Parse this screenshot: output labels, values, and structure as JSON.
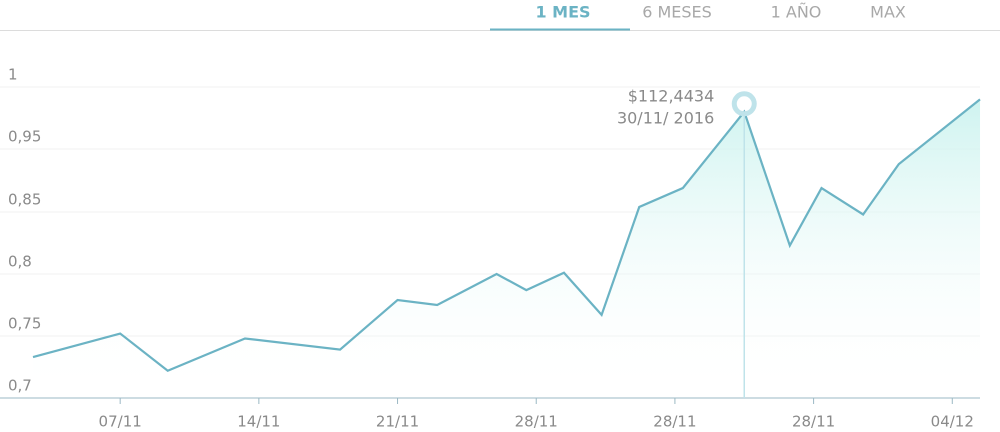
{
  "tabs": [
    "1 MES",
    "6 MESES",
    "1 AÑO",
    "MAX"
  ],
  "chart_data": {
    "type": "line",
    "x": [
      -4.4,
      0,
      2.4,
      6.3,
      11.1,
      14.0,
      16.0,
      19.0,
      20.5,
      22.4,
      24.3,
      26.2,
      28.4,
      31.5,
      33.8,
      35.4,
      37.5,
      39.3,
      43.4
    ],
    "series": [
      {
        "color": "#6bb3c4",
        "values": [
          0.733,
          0.752,
          0.722,
          0.748,
          0.739,
          0.779,
          0.775,
          0.8,
          0.787,
          0.801,
          0.767,
          0.858,
          0.888,
          0.98,
          0.823,
          0.888,
          0.848,
          0.926,
          0.99
        ]
      }
    ],
    "xlim": [
      -4.4,
      43.5
    ],
    "xticks": [
      {
        "value": 0,
        "label": "07/11"
      },
      {
        "value": 7,
        "label": "14/11"
      },
      {
        "value": 14,
        "label": "21/11"
      },
      {
        "value": 21,
        "label": "28/11"
      },
      {
        "value": 28,
        "label": "28/11"
      },
      {
        "value": 35,
        "label": "28/11"
      },
      {
        "value": 42,
        "label": "04/12"
      }
    ],
    "ylim": [
      0.7,
      1
    ],
    "yticks": [
      {
        "value": 1,
        "label": "1"
      },
      {
        "value": 0.95,
        "label": "0,95"
      },
      {
        "value": 0.85,
        "label": "0,85"
      },
      {
        "value": 0.8,
        "label": "0,8"
      },
      {
        "value": 0.75,
        "label": "0,75"
      },
      {
        "value": 0.7,
        "label": "0,7"
      }
    ],
    "grid": true,
    "annotation": {
      "index": 13,
      "lines": [
        "$112,4434",
        "30/11/ 2016"
      ]
    }
  }
}
